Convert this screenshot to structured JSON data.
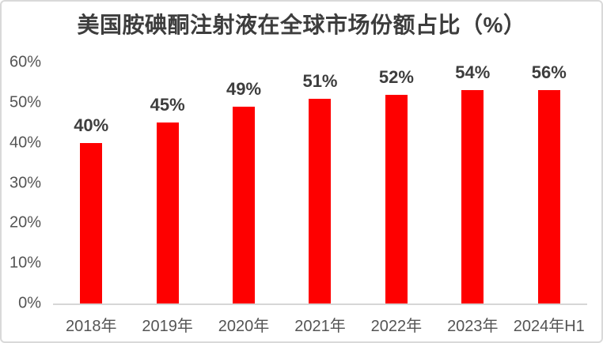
{
  "chart_data": {
    "type": "bar",
    "title": "美国胺碘酮注射液在全球市场份额占比（%）",
    "categories": [
      "2018年",
      "2019年",
      "2020年",
      "2021年",
      "2022年",
      "2023年",
      "2024年H1"
    ],
    "values": [
      40,
      45,
      49,
      51,
      52,
      54,
      56
    ],
    "data_labels": [
      "40%",
      "45%",
      "49%",
      "51%",
      "52%",
      "54%",
      "56%"
    ],
    "ytick_labels": [
      "60%",
      "50%",
      "40%",
      "30%",
      "20%",
      "10%",
      "0%"
    ],
    "ytick_values": [
      60,
      50,
      40,
      30,
      20,
      10,
      0
    ],
    "ylim": [
      0,
      60
    ],
    "xlabel": "",
    "ylabel": "",
    "grid": false,
    "legend": false,
    "colors": {
      "bar": "#fe0000",
      "title_text": "#3d3d3d",
      "data_label_text": "#3d3d3d",
      "axis_text": "#545454",
      "axis_line": "#d6d6d6",
      "card_border": "#d9d9d9",
      "background": "#ffffff"
    }
  }
}
